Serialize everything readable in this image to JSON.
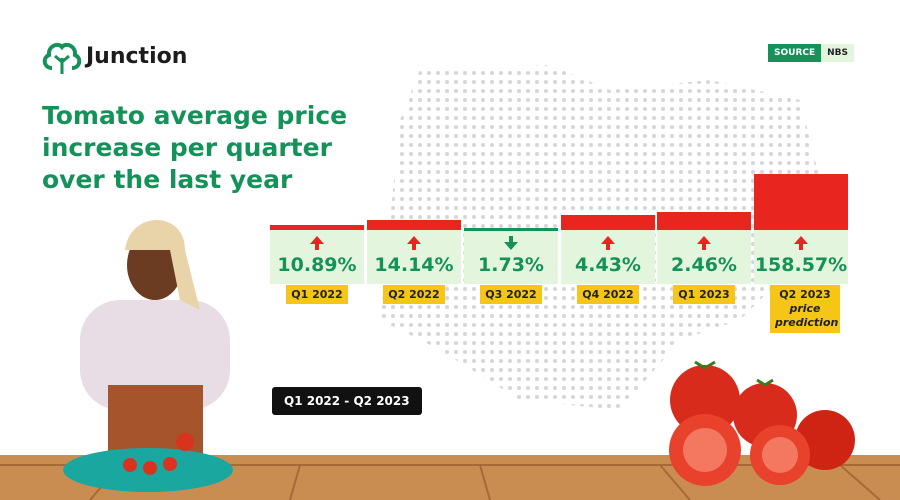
{
  "brand": "Junction",
  "source": {
    "label": "SOURCE",
    "value": "NBS"
  },
  "title": "Tomato average price increase per quarter over the last year",
  "cards": [
    {
      "change": "10.89%",
      "period": "Q1 2022"
    },
    {
      "change": "14.14%",
      "period": "Q2 2022"
    },
    {
      "change": "1.73%",
      "period": "Q3 2022"
    },
    {
      "change": "4.43%",
      "period": "Q4 2022"
    },
    {
      "change": "2.46%",
      "period": "Q1 2023"
    },
    {
      "change": "158.57%",
      "period": "Q2 2023",
      "note": "price prediction"
    }
  ],
  "range": "Q1 2022 - Q2 2023"
}
